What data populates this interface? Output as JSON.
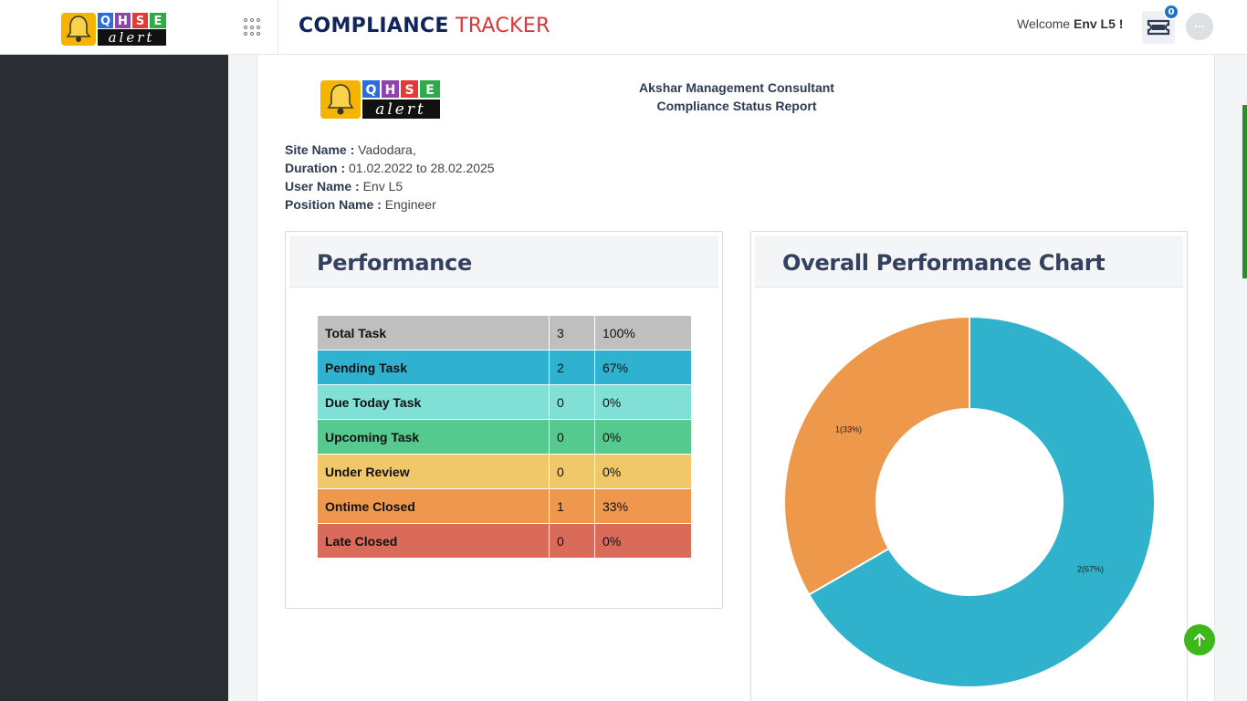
{
  "header": {
    "logo_text_top": "QHSE",
    "logo_text_bottom": "alert",
    "title_part1": "COMPLIANCE",
    "title_part2": "TRACKER",
    "welcome_prefix": "Welcome",
    "welcome_user": "Env L5 !",
    "notification_count": "0"
  },
  "report": {
    "logo_text_top": "QHSE",
    "logo_text_bottom": "alert",
    "org_name": "Akshar Management Consultant",
    "report_title": "Compliance Status Report",
    "meta": {
      "site_label": "Site Name :",
      "site_value": "Vadodara,",
      "duration_label": "Duration :",
      "duration_value": "01.02.2022 to 28.02.2025",
      "user_label": "User Name :",
      "user_value": "Env L5",
      "position_label": "Position Name :",
      "position_value": "Engineer"
    }
  },
  "performance": {
    "title": "Performance",
    "rows": [
      {
        "label": "Total Task",
        "count": "3",
        "percent": "100%",
        "color": "#bfbfbf"
      },
      {
        "label": "Pending Task",
        "count": "2",
        "percent": "67%",
        "color": "#2fb2cf"
      },
      {
        "label": "Due Today Task",
        "count": "0",
        "percent": "0%",
        "color": "#80e0d6"
      },
      {
        "label": "Upcoming Task",
        "count": "0",
        "percent": "0%",
        "color": "#55c98e"
      },
      {
        "label": "Under Review",
        "count": "0",
        "percent": "0%",
        "color": "#f0c869"
      },
      {
        "label": "Ontime Closed",
        "count": "1",
        "percent": "33%",
        "color": "#ef984d"
      },
      {
        "label": "Late Closed",
        "count": "0",
        "percent": "0%",
        "color": "#da6b5b"
      }
    ]
  },
  "chart_panel": {
    "title": "Overall Performance Chart"
  },
  "chart_data": {
    "type": "pie",
    "donut": true,
    "slices": [
      {
        "label": "2(67%)",
        "value": 2,
        "color": "#30b2cd"
      },
      {
        "label": "1(33%)",
        "value": 1,
        "color": "#ee984c"
      }
    ]
  },
  "colors": {
    "sidebar": "#2a2e32",
    "brand_dark": "#12255a",
    "brand_red": "#d9373b",
    "scroll_button": "#3cb81a"
  },
  "icons": {
    "app_grid": "grid-icon",
    "ticket": "ticket-icon",
    "scroll_up": "arrow-up-icon"
  }
}
